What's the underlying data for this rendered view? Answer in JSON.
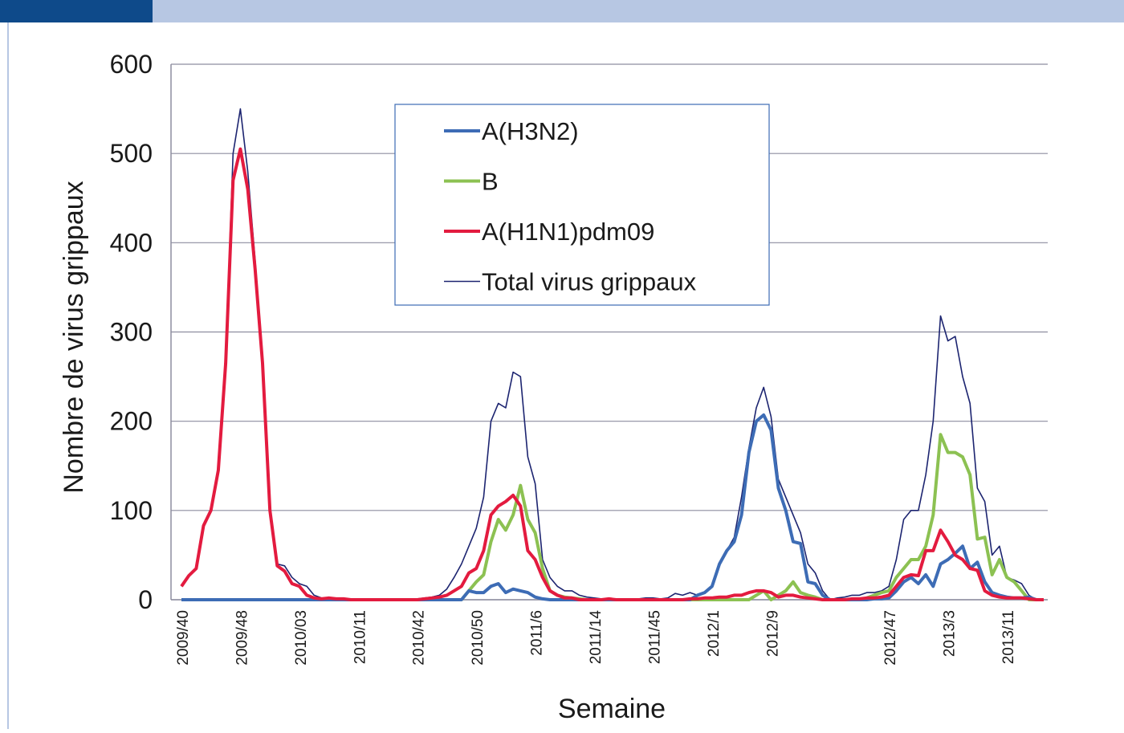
{
  "chart_data": {
    "type": "line",
    "y_label": "Nombre de virus grippaux",
    "x_label": "Semaine",
    "categories": [
      "2009/40",
      null,
      null,
      null,
      null,
      null,
      null,
      null,
      "2009/48",
      null,
      null,
      null,
      null,
      null,
      null,
      null,
      "2010/03",
      null,
      null,
      null,
      null,
      null,
      null,
      null,
      "2010/11",
      null,
      null,
      null,
      null,
      null,
      null,
      null,
      "2010/42",
      null,
      null,
      null,
      null,
      null,
      null,
      null,
      "2010/50",
      null,
      null,
      null,
      null,
      null,
      null,
      null,
      "2011/6",
      null,
      null,
      null,
      null,
      null,
      null,
      null,
      "2011/14",
      null,
      null,
      null,
      null,
      null,
      null,
      null,
      "2011/45",
      null,
      null,
      null,
      null,
      null,
      null,
      null,
      "2012/1",
      null,
      null,
      null,
      null,
      null,
      null,
      null,
      "2012/9",
      null,
      null,
      null,
      null,
      null,
      null,
      null,
      null,
      null,
      null,
      null,
      null,
      null,
      null,
      null,
      "2012/47",
      null,
      null,
      null,
      null,
      null,
      null,
      null,
      "2013/3",
      null,
      null,
      null,
      null,
      null,
      null,
      null,
      "2013/11",
      null,
      null,
      null,
      null,
      null
    ],
    "series": [
      {
        "name": "A(H3N2)",
        "color": "#3d6cb5",
        "width": 4,
        "values": [
          0,
          0,
          0,
          0,
          0,
          0,
          0,
          0,
          0,
          0,
          0,
          0,
          0,
          0,
          0,
          0,
          0,
          0,
          0,
          0,
          0,
          0,
          0,
          0,
          0,
          0,
          0,
          0,
          0,
          0,
          0,
          0,
          0,
          0,
          0,
          0,
          0,
          0,
          0,
          10,
          8,
          8,
          15,
          18,
          8,
          12,
          10,
          8,
          3,
          1,
          0,
          0,
          0,
          0,
          0,
          0,
          0,
          0,
          0,
          0,
          0,
          0,
          0,
          0,
          0,
          0,
          0,
          0,
          0,
          0,
          5,
          8,
          15,
          40,
          55,
          65,
          95,
          165,
          200,
          207,
          190,
          125,
          100,
          65,
          63,
          20,
          18,
          5,
          0,
          0,
          0,
          0,
          0,
          0,
          1,
          1,
          2,
          10,
          20,
          25,
          18,
          28,
          15,
          40,
          45,
          52,
          60,
          35,
          42,
          20,
          8,
          5,
          3,
          2,
          2,
          3,
          0,
          0
        ]
      },
      {
        "name": "B",
        "color": "#8cc152",
        "width": 4,
        "values": [
          0,
          0,
          0,
          0,
          0,
          0,
          0,
          0,
          0,
          0,
          0,
          0,
          0,
          0,
          0,
          0,
          0,
          0,
          0,
          0,
          0,
          0,
          0,
          0,
          0,
          0,
          0,
          0,
          0,
          0,
          0,
          0,
          0,
          0,
          0,
          0,
          0,
          0,
          0,
          10,
          20,
          28,
          65,
          90,
          78,
          95,
          128,
          90,
          75,
          35,
          10,
          5,
          3,
          2,
          1,
          0,
          0,
          0,
          0,
          0,
          0,
          0,
          0,
          0,
          0,
          0,
          0,
          0,
          0,
          0,
          0,
          0,
          0,
          0,
          0,
          0,
          0,
          0,
          5,
          10,
          0,
          5,
          10,
          20,
          8,
          5,
          3,
          0,
          0,
          0,
          0,
          0,
          0,
          2,
          5,
          8,
          10,
          25,
          35,
          45,
          45,
          60,
          95,
          185,
          165,
          165,
          160,
          140,
          68,
          70,
          28,
          45,
          25,
          20,
          10,
          0,
          0,
          0
        ]
      },
      {
        "name": "A(H1N1)pdm09",
        "color": "#e31b3f",
        "width": 4,
        "values": [
          15,
          27,
          35,
          83,
          100,
          145,
          265,
          470,
          505,
          460,
          370,
          265,
          100,
          38,
          32,
          18,
          15,
          5,
          2,
          1,
          2,
          1,
          1,
          0,
          0,
          0,
          0,
          0,
          0,
          0,
          0,
          0,
          0,
          1,
          2,
          3,
          5,
          10,
          15,
          30,
          35,
          55,
          95,
          105,
          110,
          117,
          105,
          55,
          45,
          25,
          10,
          5,
          2,
          2,
          0,
          0,
          0,
          0,
          1,
          0,
          0,
          0,
          0,
          0,
          0,
          0,
          0,
          0,
          0,
          1,
          1,
          2,
          2,
          3,
          3,
          5,
          5,
          8,
          10,
          10,
          8,
          3,
          5,
          5,
          3,
          2,
          1,
          0,
          0,
          0,
          0,
          1,
          1,
          2,
          2,
          3,
          5,
          15,
          25,
          28,
          27,
          55,
          55,
          78,
          65,
          50,
          45,
          35,
          33,
          10,
          5,
          3,
          2,
          2,
          2,
          1,
          0,
          0
        ]
      },
      {
        "name": "Total virus grippaux",
        "color": "#1c2470",
        "width": 1.6,
        "values": [
          15,
          28,
          35,
          85,
          100,
          150,
          270,
          500,
          550,
          480,
          380,
          270,
          105,
          40,
          38,
          25,
          18,
          15,
          5,
          2,
          2,
          2,
          1,
          1,
          1,
          1,
          1,
          1,
          1,
          1,
          1,
          1,
          1,
          2,
          3,
          5,
          12,
          25,
          40,
          60,
          80,
          115,
          200,
          220,
          215,
          255,
          250,
          160,
          130,
          45,
          25,
          15,
          10,
          10,
          5,
          3,
          2,
          1,
          1,
          1,
          1,
          1,
          1,
          2,
          2,
          1,
          2,
          7,
          5,
          8,
          5,
          8,
          15,
          40,
          55,
          70,
          115,
          170,
          215,
          238,
          205,
          135,
          115,
          95,
          75,
          40,
          30,
          10,
          0,
          2,
          3,
          5,
          5,
          8,
          8,
          10,
          15,
          45,
          90,
          100,
          100,
          140,
          200,
          318,
          290,
          295,
          250,
          220,
          125,
          110,
          50,
          60,
          25,
          22,
          18,
          5,
          0,
          0
        ]
      }
    ],
    "ylim": [
      0,
      600
    ],
    "yticks": [
      0,
      100,
      200,
      300,
      400,
      500,
      600
    ],
    "grid": true
  }
}
